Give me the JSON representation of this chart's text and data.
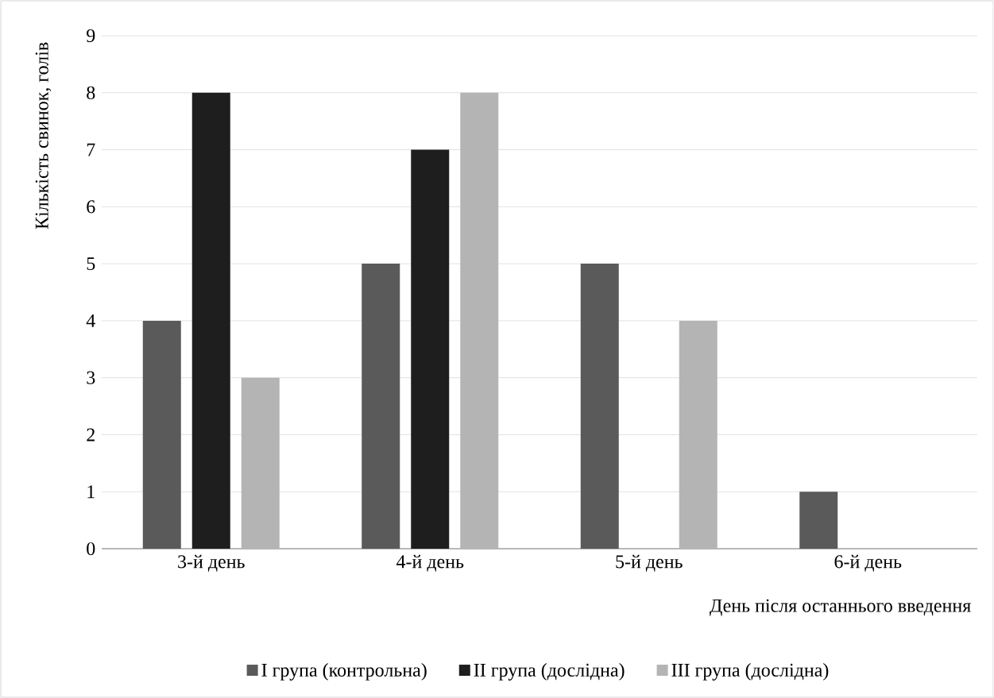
{
  "chart_data": {
    "type": "bar",
    "xlabel": "День після останнього введення",
    "ylabel": "Кількість свинок, голів",
    "categories": [
      "3-й день",
      "4-й день",
      "5-й день",
      "6-й день"
    ],
    "series": [
      {
        "name": "I група (контрольна)",
        "color": "#5a5a5a",
        "values": [
          4,
          5,
          5,
          1
        ]
      },
      {
        "name": "II група (дослідна)",
        "color": "#1e1e1e",
        "values": [
          8,
          7,
          0,
          0
        ]
      },
      {
        "name": "III група (дослідна)",
        "color": "#b4b4b4",
        "values": [
          3,
          8,
          4,
          0
        ]
      }
    ],
    "ylim": [
      0,
      9
    ],
    "yticks": [
      0,
      1,
      2,
      3,
      4,
      5,
      6,
      7,
      8,
      9
    ],
    "grid": "y",
    "legend": "bottom"
  }
}
